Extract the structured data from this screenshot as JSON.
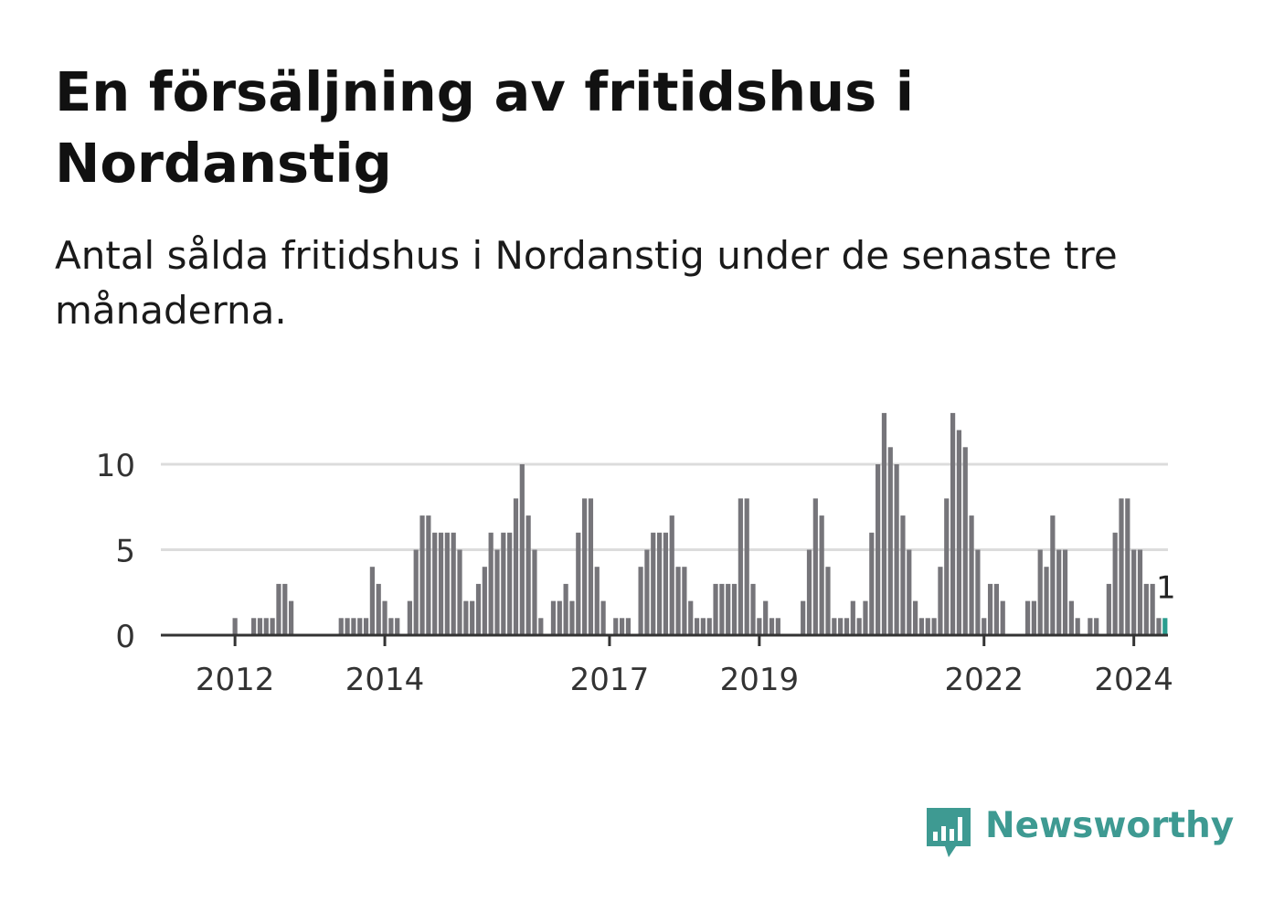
{
  "title": "En försäljning av fritidshus i Nordanstig",
  "subtitle": "Antal sålda fritidshus i Nordanstig under de senaste tre månaderna.",
  "brand": {
    "name": "Newsworthy",
    "icon": "newsworthy-logo-icon",
    "color": "#3e9a92"
  },
  "chart_data": {
    "type": "bar",
    "title": "",
    "xlabel": "",
    "ylabel": "",
    "ylim": [
      0,
      13
    ],
    "y_ticks": [
      0,
      5,
      10
    ],
    "x_ticks": [
      {
        "month": "2012-01",
        "label": "2012"
      },
      {
        "month": "2014-01",
        "label": "2014"
      },
      {
        "month": "2017-01",
        "label": "2017"
      },
      {
        "month": "2019-01",
        "label": "2019"
      },
      {
        "month": "2022-01",
        "label": "2022"
      },
      {
        "month": "2024-01",
        "label": "2024"
      }
    ],
    "grid": true,
    "bar_color": "#76757a",
    "highlight_color": "#2a9d8f",
    "highlight_label": "1",
    "series": [
      {
        "start_month": "2011-05",
        "values": [
          0,
          0,
          0,
          0,
          0,
          0,
          0,
          0,
          1,
          0,
          0,
          1,
          1,
          1,
          1,
          3,
          3,
          2,
          0,
          0,
          0,
          0,
          0,
          0,
          0,
          1,
          1,
          1,
          1,
          1,
          4,
          3,
          2,
          1,
          1,
          0,
          2,
          5,
          7,
          7,
          6,
          6,
          6,
          6,
          5,
          2,
          2,
          3,
          4,
          6,
          5,
          6,
          6,
          8,
          10,
          7,
          5,
          1,
          0,
          2,
          2,
          3,
          2,
          6,
          8,
          8,
          4,
          2,
          0,
          1,
          1,
          1,
          0,
          4,
          5,
          6,
          6,
          6,
          7,
          4,
          4,
          2,
          1,
          1,
          1,
          3,
          3,
          3,
          3,
          8,
          8,
          3,
          1,
          2,
          1,
          1,
          0,
          0,
          0,
          2,
          5,
          8,
          7,
          4,
          1,
          1,
          1,
          2,
          1,
          2,
          6,
          10,
          13,
          11,
          10,
          7,
          5,
          2,
          1,
          1,
          1,
          4,
          8,
          13,
          12,
          11,
          7,
          5,
          1,
          3,
          3,
          2,
          0,
          0,
          0,
          2,
          2,
          5,
          4,
          7,
          5,
          5,
          2,
          1,
          0,
          1,
          1,
          0,
          3,
          6,
          8,
          8,
          5,
          5,
          3,
          3,
          1,
          1
        ]
      }
    ]
  }
}
